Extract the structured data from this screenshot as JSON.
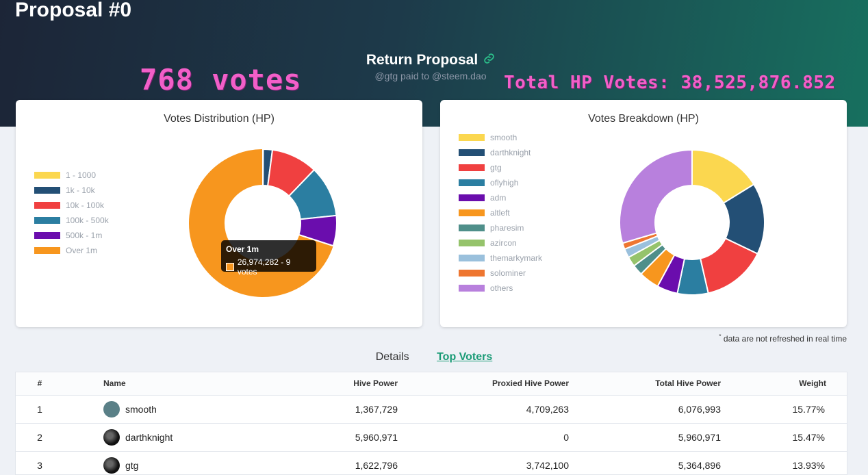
{
  "header": {
    "title": "Proposal #0",
    "proposal_name": "Return Proposal",
    "subline": "@gtg paid to @steem.dao",
    "votes_overlay": "768 votes",
    "hp_overlay": "Total HP Votes: 38,525,876.852"
  },
  "colors": {
    "accent": "#1a9b76",
    "overlay_pink": "#f25fc8"
  },
  "distribution_card": {
    "title": "Votes Distribution (HP)",
    "legend": [
      {
        "label": "1 - 1000",
        "color": "#fbd74f"
      },
      {
        "label": "1k - 10k",
        "color": "#234f75"
      },
      {
        "label": "10k - 100k",
        "color": "#f04040"
      },
      {
        "label": "100k - 500k",
        "color": "#2b7ea1"
      },
      {
        "label": "500k - 1m",
        "color": "#6a0dad"
      },
      {
        "label": "Over 1m",
        "color": "#f7961e"
      }
    ],
    "tooltip": {
      "title": "Over 1m",
      "value": "26,974,282 - 9 votes"
    }
  },
  "breakdown_card": {
    "title": "Votes Breakdown (HP)",
    "legend": [
      {
        "label": "smooth",
        "color": "#fbd74f"
      },
      {
        "label": "darthknight",
        "color": "#234f75"
      },
      {
        "label": "gtg",
        "color": "#f04040"
      },
      {
        "label": "oflyhigh",
        "color": "#2b7ea1"
      },
      {
        "label": "adm",
        "color": "#6a0dad"
      },
      {
        "label": "altleft",
        "color": "#f7961e"
      },
      {
        "label": "pharesim",
        "color": "#4f8f8a"
      },
      {
        "label": "azircon",
        "color": "#95c36b"
      },
      {
        "label": "themarkymark",
        "color": "#9ac0dc"
      },
      {
        "label": "solominer",
        "color": "#ee7630"
      },
      {
        "label": "others",
        "color": "#b880dd"
      }
    ]
  },
  "note": "data are not refreshed in real time",
  "tabs": [
    "Details",
    "Top Voters"
  ],
  "table": {
    "columns": [
      "#",
      "Name",
      "Hive Power",
      "Proxied Hive Power",
      "Total Hive Power",
      "Weight"
    ],
    "rows": [
      {
        "rank": "1",
        "name": "smooth",
        "hp": "1,367,729",
        "proxied": "4,709,263",
        "total": "6,076,993",
        "weight": "15.77%"
      },
      {
        "rank": "2",
        "name": "darthknight",
        "hp": "5,960,971",
        "proxied": "0",
        "total": "5,960,971",
        "weight": "15.47%"
      },
      {
        "rank": "3",
        "name": "gtg",
        "hp": "1,622,796",
        "proxied": "3,742,100",
        "total": "5,364,896",
        "weight": "13.93%"
      }
    ]
  },
  "chart_data": [
    {
      "type": "pie",
      "title": "Votes Distribution (HP)",
      "categories": [
        "1 - 1000",
        "1k - 10k",
        "10k - 100k",
        "100k - 500k",
        "500k - 1m",
        "Over 1m"
      ],
      "values": [
        30000,
        770000,
        3900000,
        4300000,
        2550000,
        26974282
      ],
      "legend": "left"
    },
    {
      "type": "pie",
      "title": "Votes Breakdown (HP)",
      "categories": [
        "smooth",
        "darthknight",
        "gtg",
        "oflyhigh",
        "adm",
        "altleft",
        "pharesim",
        "azircon",
        "themarkymark",
        "solominer",
        "others"
      ],
      "values": [
        6076993,
        5960971,
        5364896,
        2570000,
        1730000,
        1700000,
        890000,
        830000,
        750000,
        520000,
        11100000
      ],
      "legend": "left"
    }
  ]
}
